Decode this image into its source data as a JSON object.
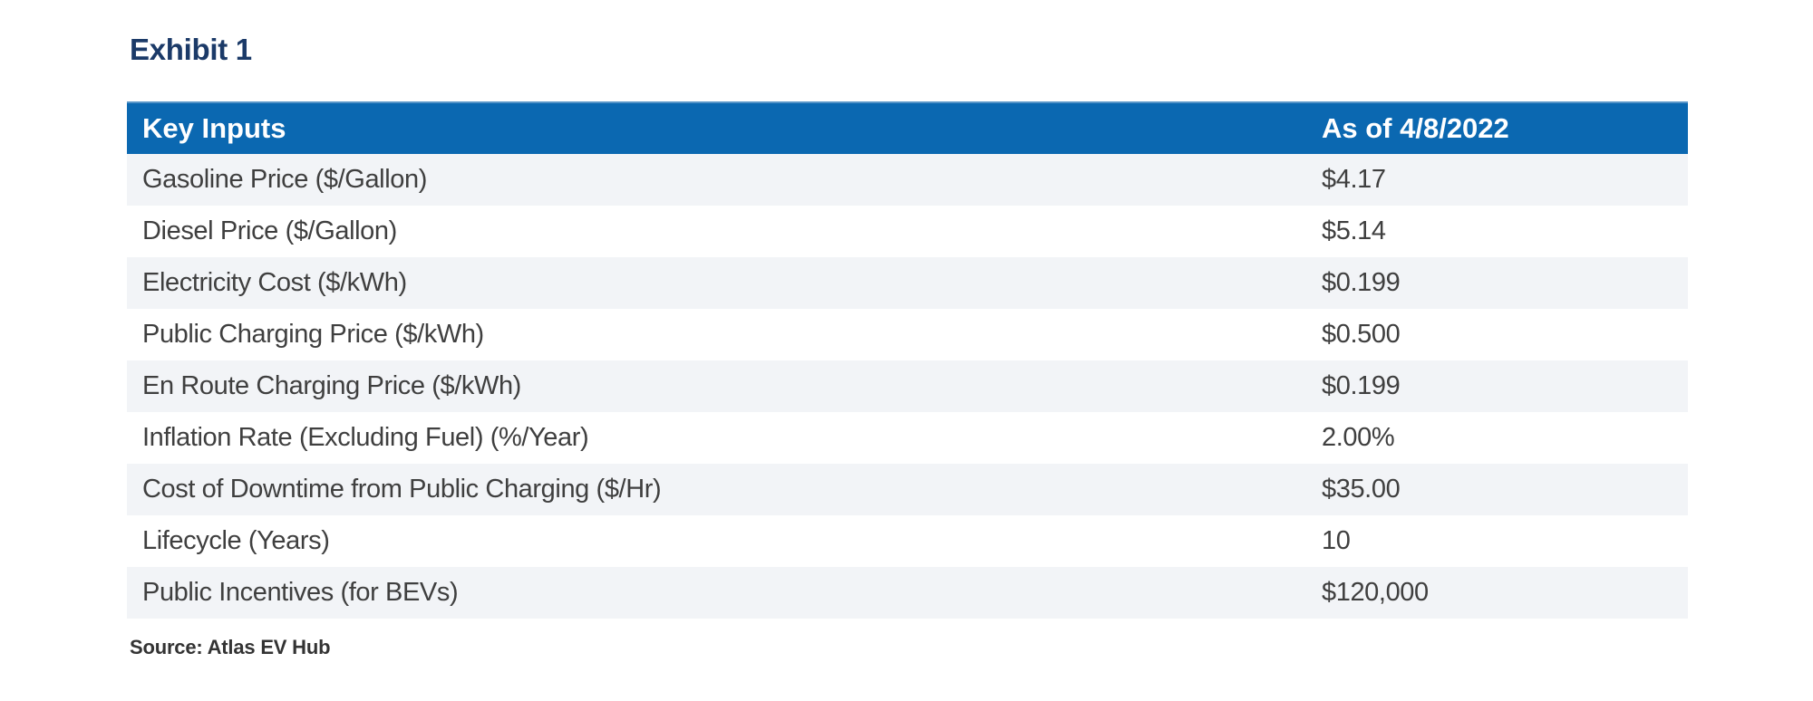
{
  "page": {
    "title": "Exhibit 1",
    "source": "Source: Atlas EV Hub"
  },
  "table": {
    "header": {
      "label": "Key Inputs",
      "value": "As of 4/8/2022"
    },
    "rows": [
      {
        "label": "Gasoline Price ($/Gallon)",
        "value": "$4.17"
      },
      {
        "label": "Diesel Price ($/Gallon)",
        "value": "$5.14"
      },
      {
        "label": "Electricity Cost ($/kWh)",
        "value": "$0.199"
      },
      {
        "label": "Public Charging Price ($/kWh)",
        "value": "$0.500"
      },
      {
        "label": "En Route Charging Price ($/kWh)",
        "value": "$0.199"
      },
      {
        "label": "Inflation Rate (Excluding Fuel) (%/Year)",
        "value": "2.00%"
      },
      {
        "label": "Cost of Downtime from Public Charging ($/Hr)",
        "value": "$35.00"
      },
      {
        "label": "Lifecycle (Years)",
        "value": "10"
      },
      {
        "label": "Public Incentives (for BEVs)",
        "value": "$120,000"
      }
    ]
  },
  "colors": {
    "header_bg": "#0b68b1",
    "header_border": "#5795c8",
    "header_text": "#ffffff",
    "stripe_bg": "#f2f4f7",
    "row_text": "#3f3f3f",
    "title_text": "#1b3a68",
    "source_text": "#333333"
  }
}
